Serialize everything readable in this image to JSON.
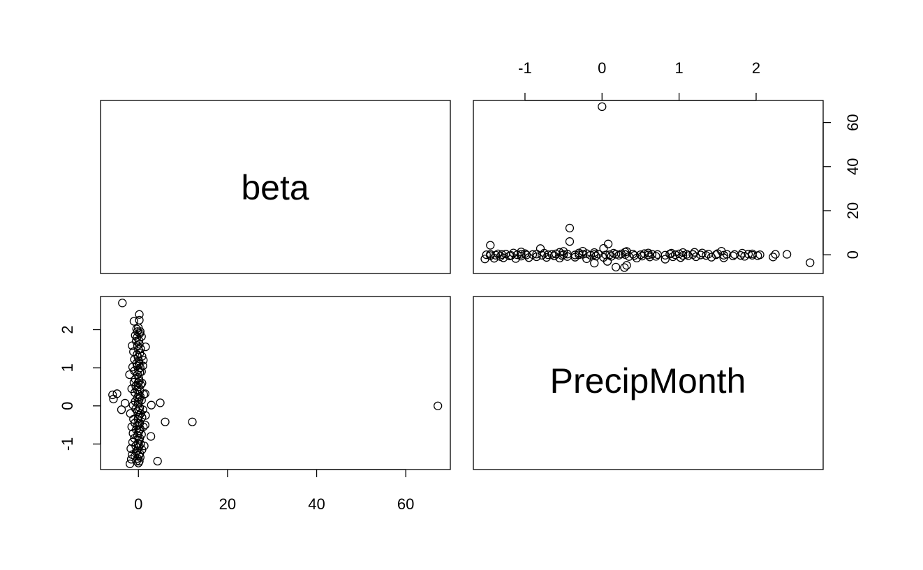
{
  "chart_data": {
    "type": "scatter",
    "kind": "pairs-matrix",
    "variables": [
      "beta",
      "PrecipMonth"
    ],
    "grid": false,
    "axes": {
      "beta": {
        "ticks": [
          0,
          20,
          40,
          60
        ],
        "tick_labels": [
          "0",
          "20",
          "40",
          "60"
        ],
        "range": [
          -8.5,
          70
        ]
      },
      "PrecipMonth": {
        "ticks": [
          -1,
          0,
          1,
          2
        ],
        "tick_labels": [
          "-1",
          "0",
          "1",
          "2"
        ],
        "range": [
          -1.67,
          2.87
        ]
      }
    },
    "panels": [
      {
        "row": 1,
        "col": 1,
        "content": "label",
        "label": "beta"
      },
      {
        "row": 1,
        "col": 2,
        "content": "scatter",
        "x": "PrecipMonth",
        "y": "beta",
        "x_axis_side": "top",
        "y_axis_side": "right"
      },
      {
        "row": 2,
        "col": 1,
        "content": "scatter",
        "x": "beta",
        "y": "PrecipMonth",
        "x_axis_side": "bottom",
        "y_axis_side": "left"
      },
      {
        "row": 2,
        "col": 2,
        "content": "label",
        "label": "PrecipMonth"
      }
    ],
    "points": [
      {
        "beta": 67.2,
        "PrecipMonth": 0.0
      },
      {
        "beta": 12.1,
        "PrecipMonth": -0.42
      },
      {
        "beta": 6.0,
        "PrecipMonth": -0.42
      },
      {
        "beta": 4.3,
        "PrecipMonth": -1.45
      },
      {
        "beta": 4.9,
        "PrecipMonth": 0.08
      },
      {
        "beta": 2.8,
        "PrecipMonth": -0.8
      },
      {
        "beta": 2.9,
        "PrecipMonth": 0.02
      },
      {
        "beta": 1.6,
        "PrecipMonth": 1.55
      },
      {
        "beta": -5.8,
        "PrecipMonth": 0.29
      },
      {
        "beta": -5.6,
        "PrecipMonth": 0.18
      },
      {
        "beta": -4.8,
        "PrecipMonth": 0.32
      },
      {
        "beta": -3.8,
        "PrecipMonth": -0.1
      },
      {
        "beta": -3.6,
        "PrecipMonth": 2.7
      },
      {
        "beta": -3.0,
        "PrecipMonth": 0.07
      },
      {
        "beta": -2.0,
        "PrecipMonth": 0.82
      },
      {
        "beta": -1.5,
        "PrecipMonth": 0.45
      },
      {
        "beta": -1.9,
        "PrecipMonth": -1.52
      },
      {
        "beta": -1.6,
        "PrecipMonth": -1.4
      },
      {
        "beta": -1.4,
        "PrecipMonth": -1.28
      },
      {
        "beta": -1.7,
        "PrecipMonth": -1.12
      },
      {
        "beta": -1.3,
        "PrecipMonth": -0.95
      },
      {
        "beta": -1.2,
        "PrecipMonth": -0.72
      },
      {
        "beta": -1.5,
        "PrecipMonth": -0.55
      },
      {
        "beta": -1.1,
        "PrecipMonth": -0.35
      },
      {
        "beta": -1.8,
        "PrecipMonth": -0.2
      },
      {
        "beta": -1.2,
        "PrecipMonth": 0.02
      },
      {
        "beta": -1.0,
        "PrecipMonth": 0.62
      },
      {
        "beta": -1.3,
        "PrecipMonth": 1.02
      },
      {
        "beta": -0.9,
        "PrecipMonth": 1.22
      },
      {
        "beta": -1.1,
        "PrecipMonth": 1.42
      },
      {
        "beta": -1.4,
        "PrecipMonth": 1.58
      },
      {
        "beta": -1.0,
        "PrecipMonth": 2.22
      },
      {
        "beta": -0.7,
        "PrecipMonth": 1.85
      },
      {
        "beta": -0.9,
        "PrecipMonth": 0.92
      },
      {
        "beta": -0.7,
        "PrecipMonth": 0.7
      },
      {
        "beta": -0.6,
        "PrecipMonth": 0.52
      },
      {
        "beta": -0.8,
        "PrecipMonth": 0.35
      },
      {
        "beta": -0.7,
        "PrecipMonth": 0.12
      },
      {
        "beta": -0.6,
        "PrecipMonth": -0.08
      },
      {
        "beta": -0.8,
        "PrecipMonth": -0.45
      },
      {
        "beta": -0.5,
        "PrecipMonth": -0.62
      },
      {
        "beta": -0.9,
        "PrecipMonth": -0.85
      },
      {
        "beta": -0.6,
        "PrecipMonth": -1.05
      },
      {
        "beta": -0.8,
        "PrecipMonth": -1.32
      },
      {
        "beta": -0.4,
        "PrecipMonth": -1.45
      },
      {
        "beta": -0.5,
        "PrecipMonth": -1.2
      },
      {
        "beta": -0.4,
        "PrecipMonth": 2.02
      },
      {
        "beta": -0.5,
        "PrecipMonth": 1.7
      },
      {
        "beta": -0.3,
        "PrecipMonth": 1.35
      },
      {
        "beta": -0.4,
        "PrecipMonth": 1.12
      },
      {
        "beta": -0.2,
        "PrecipMonth": 1.95
      },
      {
        "beta": -0.3,
        "PrecipMonth": 1.8
      },
      {
        "beta": -0.2,
        "PrecipMonth": 1.58
      },
      {
        "beta": -0.1,
        "PrecipMonth": 1.28
      },
      {
        "beta": -0.3,
        "PrecipMonth": 1.05
      },
      {
        "beta": -0.2,
        "PrecipMonth": 0.82
      },
      {
        "beta": -0.1,
        "PrecipMonth": 0.6
      },
      {
        "beta": -0.3,
        "PrecipMonth": 0.42
      },
      {
        "beta": -0.2,
        "PrecipMonth": 0.22
      },
      {
        "beta": -0.1,
        "PrecipMonth": 0.05
      },
      {
        "beta": -0.2,
        "PrecipMonth": -0.15
      },
      {
        "beta": -0.1,
        "PrecipMonth": -0.35
      },
      {
        "beta": -0.3,
        "PrecipMonth": -0.52
      },
      {
        "beta": -0.2,
        "PrecipMonth": -0.78
      },
      {
        "beta": -0.1,
        "PrecipMonth": -0.98
      },
      {
        "beta": -0.3,
        "PrecipMonth": -1.18
      },
      {
        "beta": -0.2,
        "PrecipMonth": -1.38
      },
      {
        "beta": 0.0,
        "PrecipMonth": -1.5
      },
      {
        "beta": 0.0,
        "PrecipMonth": 2.05
      },
      {
        "beta": 0.1,
        "PrecipMonth": 1.72
      },
      {
        "beta": 0.0,
        "PrecipMonth": 1.48
      },
      {
        "beta": 0.1,
        "PrecipMonth": 1.18
      },
      {
        "beta": 0.0,
        "PrecipMonth": 0.95
      },
      {
        "beta": 0.1,
        "PrecipMonth": 0.72
      },
      {
        "beta": 0.0,
        "PrecipMonth": 0.5
      },
      {
        "beta": 0.1,
        "PrecipMonth": 0.3
      },
      {
        "beta": 0.0,
        "PrecipMonth": 0.1
      },
      {
        "beta": 0.1,
        "PrecipMonth": -0.1
      },
      {
        "beta": 0.0,
        "PrecipMonth": -0.3
      },
      {
        "beta": 0.1,
        "PrecipMonth": -0.5
      },
      {
        "beta": 0.0,
        "PrecipMonth": -0.7
      },
      {
        "beta": 0.1,
        "PrecipMonth": -0.9
      },
      {
        "beta": 0.0,
        "PrecipMonth": -1.1
      },
      {
        "beta": 0.1,
        "PrecipMonth": -1.3
      },
      {
        "beta": 0.2,
        "PrecipMonth": 2.4
      },
      {
        "beta": 0.2,
        "PrecipMonth": 2.25
      },
      {
        "beta": 0.3,
        "PrecipMonth": 1.9
      },
      {
        "beta": 0.2,
        "PrecipMonth": 1.62
      },
      {
        "beta": 0.3,
        "PrecipMonth": 1.38
      },
      {
        "beta": 0.2,
        "PrecipMonth": 1.1
      },
      {
        "beta": 0.3,
        "PrecipMonth": 0.88
      },
      {
        "beta": 0.2,
        "PrecipMonth": 0.65
      },
      {
        "beta": 0.3,
        "PrecipMonth": 0.4
      },
      {
        "beta": 0.2,
        "PrecipMonth": 0.18
      },
      {
        "beta": 0.3,
        "PrecipMonth": -0.05
      },
      {
        "beta": 0.2,
        "PrecipMonth": -0.25
      },
      {
        "beta": 0.3,
        "PrecipMonth": -0.45
      },
      {
        "beta": 0.2,
        "PrecipMonth": -0.65
      },
      {
        "beta": 0.3,
        "PrecipMonth": -0.85
      },
      {
        "beta": 0.2,
        "PrecipMonth": -1.05
      },
      {
        "beta": 0.3,
        "PrecipMonth": -1.25
      },
      {
        "beta": 0.2,
        "PrecipMonth": -1.45
      },
      {
        "beta": 0.4,
        "PrecipMonth": 1.95
      },
      {
        "beta": 0.5,
        "PrecipMonth": 1.5
      },
      {
        "beta": 0.4,
        "PrecipMonth": 1.0
      },
      {
        "beta": 0.5,
        "PrecipMonth": 0.55
      },
      {
        "beta": 0.4,
        "PrecipMonth": 0.25
      },
      {
        "beta": 0.5,
        "PrecipMonth": -0.2
      },
      {
        "beta": 0.4,
        "PrecipMonth": -0.6
      },
      {
        "beta": 0.5,
        "PrecipMonth": -1.0
      },
      {
        "beta": 0.4,
        "PrecipMonth": -1.35
      },
      {
        "beta": 0.7,
        "PrecipMonth": 1.82
      },
      {
        "beta": 0.8,
        "PrecipMonth": 1.3
      },
      {
        "beta": 0.7,
        "PrecipMonth": 0.9
      },
      {
        "beta": 0.8,
        "PrecipMonth": 0.6
      },
      {
        "beta": 0.7,
        "PrecipMonth": 0.15
      },
      {
        "beta": 0.8,
        "PrecipMonth": -0.3
      },
      {
        "beta": 0.7,
        "PrecipMonth": -0.75
      },
      {
        "beta": 0.8,
        "PrecipMonth": -1.15
      },
      {
        "beta": 1.1,
        "PrecipMonth": 1.2
      },
      {
        "beta": 1.0,
        "PrecipMonth": 1.05
      },
      {
        "beta": 1.2,
        "PrecipMonth": 0.3
      },
      {
        "beta": 1.0,
        "PrecipMonth": -0.1
      },
      {
        "beta": 1.1,
        "PrecipMonth": -0.55
      },
      {
        "beta": 1.3,
        "PrecipMonth": -1.05
      },
      {
        "beta": 1.5,
        "PrecipMonth": 0.32
      },
      {
        "beta": 1.6,
        "PrecipMonth": -0.25
      },
      {
        "beta": 1.5,
        "PrecipMonth": -0.5
      }
    ]
  }
}
